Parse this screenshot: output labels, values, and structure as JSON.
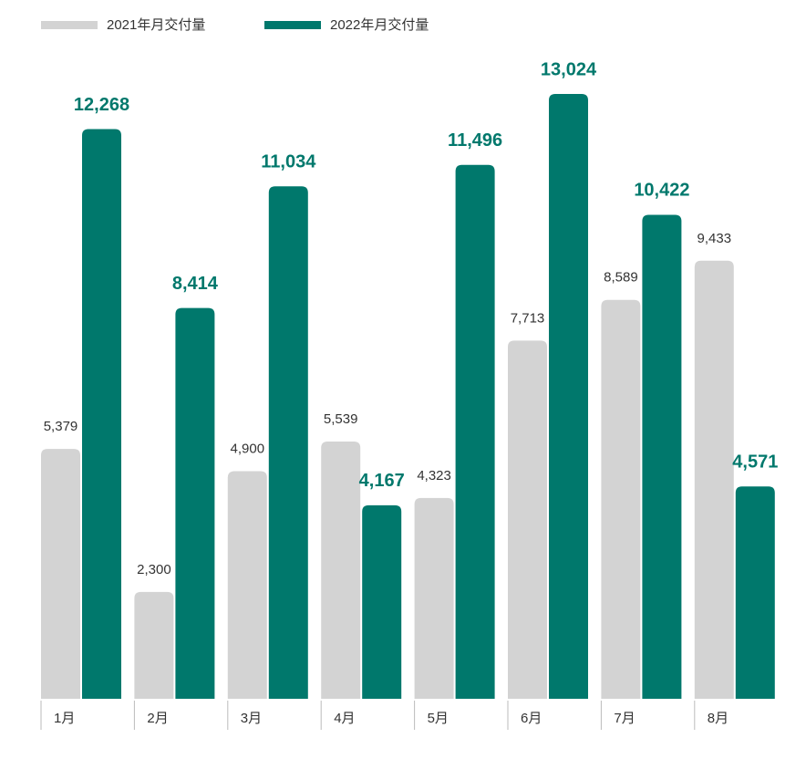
{
  "chart_data": {
    "type": "bar",
    "categories": [
      "1月",
      "2月",
      "3月",
      "4月",
      "5月",
      "6月",
      "7月",
      "8月"
    ],
    "series": [
      {
        "name": "2021年月交付量",
        "color": "#d3d3d3",
        "values": [
          5379,
          2300,
          4900,
          5539,
          4323,
          7713,
          8589,
          9433
        ],
        "value_labels": [
          "5,379",
          "2,300",
          "4,900",
          "5,539",
          "4,323",
          "7,713",
          "8,589",
          "9,433"
        ]
      },
      {
        "name": "2022年月交付量",
        "color": "#00786c",
        "values": [
          12268,
          8414,
          11034,
          4167,
          11496,
          13024,
          10422,
          4571
        ],
        "value_labels": [
          "12,268",
          "8,414",
          "11,034",
          "4,167",
          "11,496",
          "13,024",
          "10,422",
          "4,571"
        ]
      }
    ]
  }
}
